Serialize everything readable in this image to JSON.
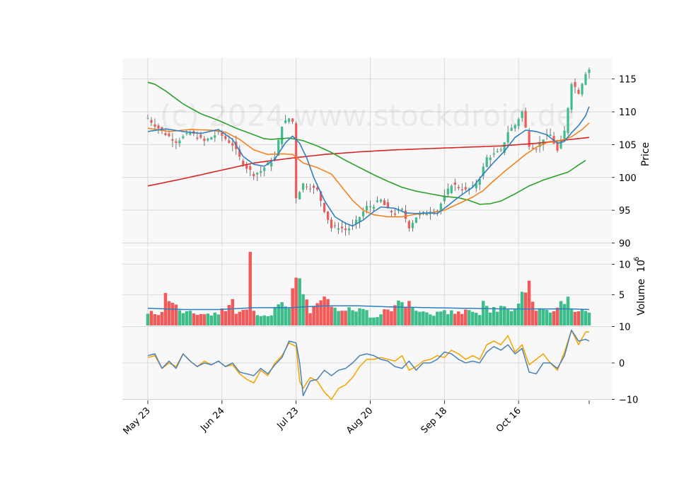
{
  "chart_data": {
    "type": "candlestick",
    "watermark": "(c) 2024 www.stockdroid.de",
    "colors": {
      "up": "#3dbd8a",
      "down": "#f25a5a",
      "sma_fast": "#2f7fc1",
      "sma_mid": "#f58220",
      "sma_slow": "#2ca02c",
      "sma_long": "#d62728",
      "volume_avg": "#2f7fc1",
      "osc_a": "#4a81b4",
      "osc_b": "#f5a300",
      "panel_bg": "#f8f8f8",
      "grid": "#d9d9d9"
    },
    "x_tick_labels": [
      "May 23",
      "Jun 24",
      "Jul 23",
      "Aug 20",
      "Sep 18",
      "Oct 16"
    ],
    "x_tick_index": [
      0,
      21,
      42,
      63,
      84,
      105
    ],
    "n_sessions": 126,
    "price_panel": {
      "ylabel": "Price",
      "yticks": [
        90,
        95,
        100,
        105,
        110,
        115
      ],
      "ylim": [
        89.3,
        118.2
      ]
    },
    "volume_panel": {
      "ylabel": "Volume",
      "multiplier_label": "10",
      "multiplier_exp": "6",
      "yticks": [
        5,
        10
      ],
      "ylim": [
        0,
        12.7
      ]
    },
    "oscillator_panel": {
      "yticks": [
        -10,
        0,
        10
      ],
      "ylim": [
        -10.3,
        10.3
      ]
    },
    "price_control_points": [
      [
        0,
        109
      ],
      [
        4,
        107
      ],
      [
        8,
        105.5
      ],
      [
        12,
        106.8
      ],
      [
        16,
        105.5
      ],
      [
        20,
        106.8
      ],
      [
        24,
        105
      ],
      [
        26,
        103
      ],
      [
        28,
        101.5
      ],
      [
        30,
        100.5
      ],
      [
        32,
        101
      ],
      [
        34,
        102
      ],
      [
        36,
        103
      ],
      [
        38,
        108
      ],
      [
        40,
        109
      ],
      [
        41,
        108.5
      ],
      [
        42,
        97
      ],
      [
        44,
        99
      ],
      [
        46,
        98.5
      ],
      [
        48,
        98
      ],
      [
        50,
        95
      ],
      [
        52,
        92.3
      ],
      [
        54,
        92.5
      ],
      [
        56,
        92
      ],
      [
        58,
        92.5
      ],
      [
        60,
        94
      ],
      [
        62,
        95.5
      ],
      [
        64,
        95.8
      ],
      [
        66,
        96.5
      ],
      [
        68,
        95
      ],
      [
        70,
        94.5
      ],
      [
        72,
        95
      ],
      [
        74,
        92.5
      ],
      [
        76,
        94
      ],
      [
        78,
        94.5
      ],
      [
        80,
        95
      ],
      [
        82,
        95
      ],
      [
        84,
        97
      ],
      [
        86,
        99
      ],
      [
        88,
        98.5
      ],
      [
        90,
        98
      ],
      [
        92,
        98.5
      ],
      [
        94,
        100
      ],
      [
        96,
        103
      ],
      [
        98,
        103.5
      ],
      [
        100,
        104
      ],
      [
        102,
        107
      ],
      [
        104,
        108
      ],
      [
        106,
        110
      ],
      [
        108,
        105
      ],
      [
        110,
        104.5
      ],
      [
        112,
        106
      ],
      [
        114,
        106.5
      ],
      [
        116,
        104
      ],
      [
        118,
        107
      ],
      [
        120,
        114.5
      ],
      [
        122,
        113
      ],
      [
        124,
        116
      ],
      [
        125,
        116.5
      ]
    ],
    "sma_fast_points": [
      [
        0,
        107
      ],
      [
        5,
        107.4
      ],
      [
        10,
        107
      ],
      [
        15,
        106.7
      ],
      [
        20,
        107.3
      ],
      [
        24,
        105.8
      ],
      [
        27,
        103.2
      ],
      [
        30,
        102
      ],
      [
        33,
        101.7
      ],
      [
        36,
        102.8
      ],
      [
        39,
        105.3
      ],
      [
        41,
        106.3
      ],
      [
        43,
        105.2
      ],
      [
        45,
        103
      ],
      [
        47,
        100
      ],
      [
        50,
        96.5
      ],
      [
        53,
        94
      ],
      [
        56,
        93
      ],
      [
        58,
        92.6
      ],
      [
        61,
        93.5
      ],
      [
        64,
        94.8
      ],
      [
        66,
        95.5
      ],
      [
        70,
        95.3
      ],
      [
        73,
        94.6
      ],
      [
        76,
        94.5
      ],
      [
        80,
        94.6
      ],
      [
        82,
        94.5
      ],
      [
        85,
        95.7
      ],
      [
        88,
        97
      ],
      [
        92,
        98.5
      ],
      [
        95,
        100.5
      ],
      [
        98,
        102.3
      ],
      [
        101,
        104
      ],
      [
        104,
        106.1
      ],
      [
        107,
        107.2
      ],
      [
        110,
        107
      ],
      [
        113,
        106.5
      ],
      [
        116,
        105.2
      ],
      [
        118,
        105.5
      ],
      [
        120,
        106.8
      ],
      [
        122,
        107.9
      ],
      [
        124,
        109.4
      ],
      [
        125,
        110.8
      ]
    ],
    "sma_mid_points": [
      [
        0,
        107.5
      ],
      [
        6,
        107
      ],
      [
        12,
        107.3
      ],
      [
        18,
        107.2
      ],
      [
        22,
        106.9
      ],
      [
        26,
        105.8
      ],
      [
        30,
        104.2
      ],
      [
        34,
        103.5
      ],
      [
        38,
        103.6
      ],
      [
        41,
        103.5
      ],
      [
        44,
        102.2
      ],
      [
        48,
        101.5
      ],
      [
        52,
        100.5
      ],
      [
        55,
        98.5
      ],
      [
        58,
        96.5
      ],
      [
        61,
        95
      ],
      [
        64,
        94.3
      ],
      [
        68,
        94
      ],
      [
        72,
        94
      ],
      [
        76,
        94.4
      ],
      [
        80,
        94.6
      ],
      [
        84,
        95
      ],
      [
        88,
        96
      ],
      [
        92,
        97
      ],
      [
        95,
        98
      ],
      [
        98,
        99.5
      ],
      [
        101,
        100.9
      ],
      [
        104,
        102.2
      ],
      [
        107,
        103.5
      ],
      [
        110,
        104.6
      ],
      [
        113,
        105.3
      ],
      [
        116,
        105.5
      ],
      [
        118,
        105.8
      ],
      [
        120,
        106.2
      ],
      [
        123,
        107.3
      ],
      [
        125,
        108.3
      ]
    ],
    "sma_slow_points": [
      [
        0,
        114.5
      ],
      [
        2,
        114.2
      ],
      [
        5,
        113.2
      ],
      [
        10,
        111.2
      ],
      [
        15,
        109.7
      ],
      [
        20,
        108.7
      ],
      [
        25,
        107.5
      ],
      [
        30,
        106.5
      ],
      [
        33,
        105.9
      ],
      [
        35,
        105.8
      ],
      [
        40,
        106
      ],
      [
        44,
        105.6
      ],
      [
        48,
        104.8
      ],
      [
        52,
        103.8
      ],
      [
        56,
        102.6
      ],
      [
        60,
        101.5
      ],
      [
        64,
        100.4
      ],
      [
        68,
        99.4
      ],
      [
        72,
        98.5
      ],
      [
        76,
        97.9
      ],
      [
        80,
        97.5
      ],
      [
        84,
        97.1
      ],
      [
        88,
        96.9
      ],
      [
        91,
        96.5
      ],
      [
        94,
        95.9
      ],
      [
        97,
        96
      ],
      [
        100,
        96.4
      ],
      [
        104,
        97.5
      ],
      [
        108,
        98.7
      ],
      [
        112,
        99.6
      ],
      [
        116,
        100.3
      ],
      [
        119,
        100.8
      ],
      [
        122,
        101.9
      ],
      [
        124,
        102.6
      ]
    ],
    "sma_long_points": [
      [
        0,
        98.7
      ],
      [
        10,
        99.8
      ],
      [
        20,
        101
      ],
      [
        30,
        102.2
      ],
      [
        40,
        102.9
      ],
      [
        50,
        103.5
      ],
      [
        60,
        103.9
      ],
      [
        70,
        104.2
      ],
      [
        80,
        104.4
      ],
      [
        90,
        104.6
      ],
      [
        100,
        104.8
      ],
      [
        110,
        105.2
      ],
      [
        120,
        105.8
      ],
      [
        125,
        106.1
      ]
    ],
    "volume_control_points": [
      [
        0,
        1.9
      ],
      [
        4,
        2.2
      ],
      [
        5,
        5.3
      ],
      [
        8,
        3.4
      ],
      [
        10,
        2.0
      ],
      [
        20,
        1.8
      ],
      [
        24,
        4.3
      ],
      [
        25,
        1.9
      ],
      [
        28,
        2.6
      ],
      [
        29,
        12.0
      ],
      [
        30,
        2.4
      ],
      [
        34,
        1.5
      ],
      [
        38,
        3.8
      ],
      [
        40,
        2.8
      ],
      [
        42,
        7.8
      ],
      [
        43,
        7.7
      ],
      [
        44,
        5.1
      ],
      [
        46,
        2.0
      ],
      [
        49,
        4.1
      ],
      [
        51,
        4.3
      ],
      [
        53,
        2.9
      ],
      [
        56,
        2.4
      ],
      [
        60,
        2.8
      ],
      [
        64,
        1.3
      ],
      [
        68,
        2.6
      ],
      [
        70,
        3.3
      ],
      [
        74,
        4.0
      ],
      [
        76,
        2.4
      ],
      [
        80,
        1.8
      ],
      [
        84,
        2.5
      ],
      [
        87,
        1.9
      ],
      [
        90,
        2.6
      ],
      [
        94,
        1.7
      ],
      [
        95,
        4.0
      ],
      [
        97,
        2.1
      ],
      [
        100,
        3.2
      ],
      [
        102,
        2.6
      ],
      [
        104,
        2.6
      ],
      [
        108,
        7.3
      ],
      [
        110,
        2.4
      ],
      [
        114,
        2.1
      ],
      [
        116,
        2.9
      ],
      [
        118,
        3.5
      ],
      [
        119,
        4.7
      ],
      [
        121,
        2.2
      ],
      [
        125,
        2.1
      ]
    ],
    "volume_avg_points": [
      [
        0,
        2.8
      ],
      [
        10,
        2.6
      ],
      [
        20,
        2.6
      ],
      [
        30,
        2.9
      ],
      [
        40,
        2.9
      ],
      [
        50,
        3.2
      ],
      [
        60,
        3.2
      ],
      [
        70,
        3.0
      ],
      [
        80,
        2.9
      ],
      [
        90,
        2.8
      ],
      [
        100,
        2.7
      ],
      [
        110,
        2.7
      ],
      [
        120,
        2.7
      ],
      [
        125,
        2.6
      ]
    ],
    "osc_a_points": [
      [
        0,
        2
      ],
      [
        2,
        2.5
      ],
      [
        4,
        -1.5
      ],
      [
        6,
        0.5
      ],
      [
        8,
        -1.5
      ],
      [
        10,
        2.5
      ],
      [
        12,
        0.5
      ],
      [
        14,
        -1
      ],
      [
        16,
        0
      ],
      [
        18,
        -0.5
      ],
      [
        20,
        0.5
      ],
      [
        22,
        -1
      ],
      [
        24,
        0
      ],
      [
        26,
        -2.5
      ],
      [
        28,
        -3
      ],
      [
        30,
        -3.5
      ],
      [
        32,
        -1.5
      ],
      [
        34,
        -3
      ],
      [
        36,
        -0.5
      ],
      [
        38,
        1.5
      ],
      [
        40,
        6
      ],
      [
        42,
        5.5
      ],
      [
        43,
        0
      ],
      [
        44,
        -9
      ],
      [
        45,
        -7
      ],
      [
        46,
        -5
      ],
      [
        48,
        -4.5
      ],
      [
        50,
        -2
      ],
      [
        52,
        -3.5
      ],
      [
        54,
        -2
      ],
      [
        56,
        -1.5
      ],
      [
        58,
        0
      ],
      [
        60,
        2
      ],
      [
        62,
        2.5
      ],
      [
        64,
        2
      ],
      [
        66,
        1
      ],
      [
        68,
        0.5
      ],
      [
        70,
        -1
      ],
      [
        72,
        -1.5
      ],
      [
        74,
        0.5
      ],
      [
        76,
        -2
      ],
      [
        78,
        0
      ],
      [
        80,
        0
      ],
      [
        82,
        1
      ],
      [
        84,
        3
      ],
      [
        86,
        2.5
      ],
      [
        88,
        1
      ],
      [
        90,
        0
      ],
      [
        92,
        0.5
      ],
      [
        94,
        0
      ],
      [
        96,
        3
      ],
      [
        98,
        4.5
      ],
      [
        100,
        3.5
      ],
      [
        102,
        5
      ],
      [
        104,
        2.5
      ],
      [
        106,
        4
      ],
      [
        108,
        -2.5
      ],
      [
        110,
        -3
      ],
      [
        112,
        0
      ],
      [
        114,
        0
      ],
      [
        116,
        -1.5
      ],
      [
        118,
        2
      ],
      [
        120,
        9
      ],
      [
        122,
        6
      ],
      [
        124,
        6.5
      ],
      [
        125,
        6
      ]
    ],
    "osc_b_points": [
      [
        0,
        1.5
      ],
      [
        2,
        2
      ],
      [
        4,
        -1.5
      ],
      [
        6,
        0
      ],
      [
        8,
        -1
      ],
      [
        10,
        2.5
      ],
      [
        12,
        0.5
      ],
      [
        14,
        -1
      ],
      [
        16,
        0.5
      ],
      [
        18,
        -0.5
      ],
      [
        20,
        0.5
      ],
      [
        22,
        -1
      ],
      [
        24,
        -0.5
      ],
      [
        26,
        -3
      ],
      [
        28,
        -4.5
      ],
      [
        30,
        -5.5
      ],
      [
        32,
        -2
      ],
      [
        34,
        -3.5
      ],
      [
        36,
        0
      ],
      [
        38,
        2
      ],
      [
        40,
        5.5
      ],
      [
        42,
        4.5
      ],
      [
        43,
        -5
      ],
      [
        44,
        -7
      ],
      [
        46,
        -4
      ],
      [
        48,
        -5
      ],
      [
        50,
        -8
      ],
      [
        52,
        -10
      ],
      [
        54,
        -7
      ],
      [
        56,
        -6
      ],
      [
        58,
        -4
      ],
      [
        60,
        -1
      ],
      [
        62,
        1
      ],
      [
        64,
        1
      ],
      [
        66,
        1.5
      ],
      [
        68,
        1
      ],
      [
        70,
        0.5
      ],
      [
        72,
        2
      ],
      [
        74,
        -2
      ],
      [
        76,
        -1
      ],
      [
        78,
        0.5
      ],
      [
        80,
        1
      ],
      [
        82,
        2
      ],
      [
        84,
        1.5
      ],
      [
        86,
        3.5
      ],
      [
        88,
        2.5
      ],
      [
        90,
        1
      ],
      [
        92,
        2
      ],
      [
        94,
        1
      ],
      [
        96,
        5
      ],
      [
        98,
        6
      ],
      [
        100,
        5
      ],
      [
        102,
        7.5
      ],
      [
        104,
        3
      ],
      [
        106,
        5
      ],
      [
        108,
        -0.5
      ],
      [
        110,
        1
      ],
      [
        112,
        2.5
      ],
      [
        114,
        0
      ],
      [
        116,
        -2
      ],
      [
        118,
        3
      ],
      [
        120,
        9
      ],
      [
        122,
        5
      ],
      [
        124,
        8.5
      ],
      [
        125,
        8.5
      ]
    ]
  }
}
